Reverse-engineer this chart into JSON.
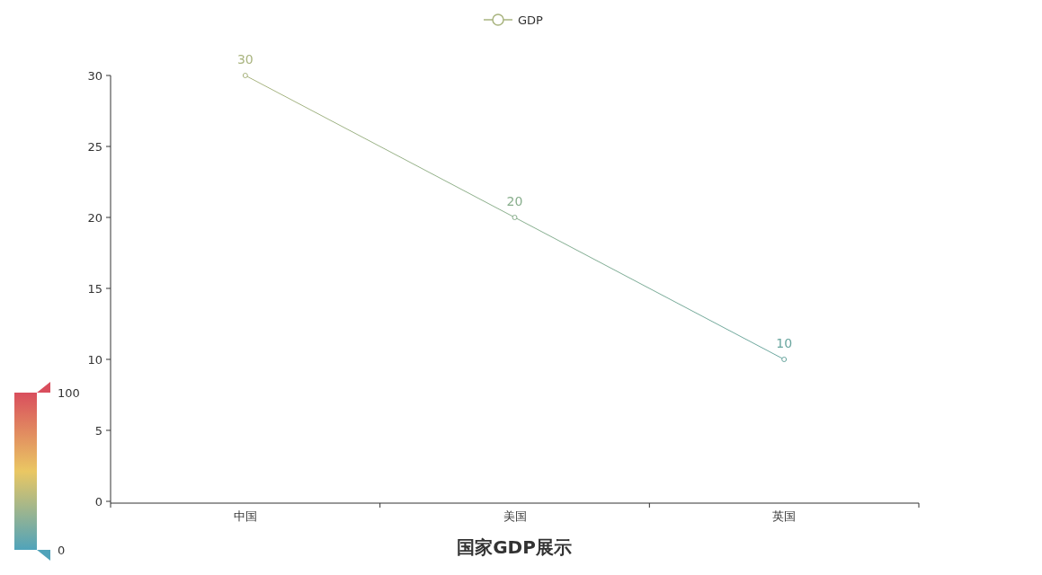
{
  "chart_data": {
    "type": "line",
    "title": "国家GDP展示",
    "categories": [
      "中国",
      "美国",
      "英国"
    ],
    "series": [
      {
        "name": "GDP",
        "colors": [
          "#a9b47f",
          "#88ae8c",
          "#6aa69f"
        ],
        "values": [
          30,
          20,
          10
        ]
      }
    ],
    "ylim": [
      0,
      30
    ],
    "yticks": [
      0,
      5,
      10,
      15,
      20,
      25,
      30
    ],
    "clim": [
      0,
      100
    ],
    "cticks": [
      0,
      100
    ],
    "data_labels": true,
    "legend": "top",
    "marker": "circle",
    "grid": false
  }
}
